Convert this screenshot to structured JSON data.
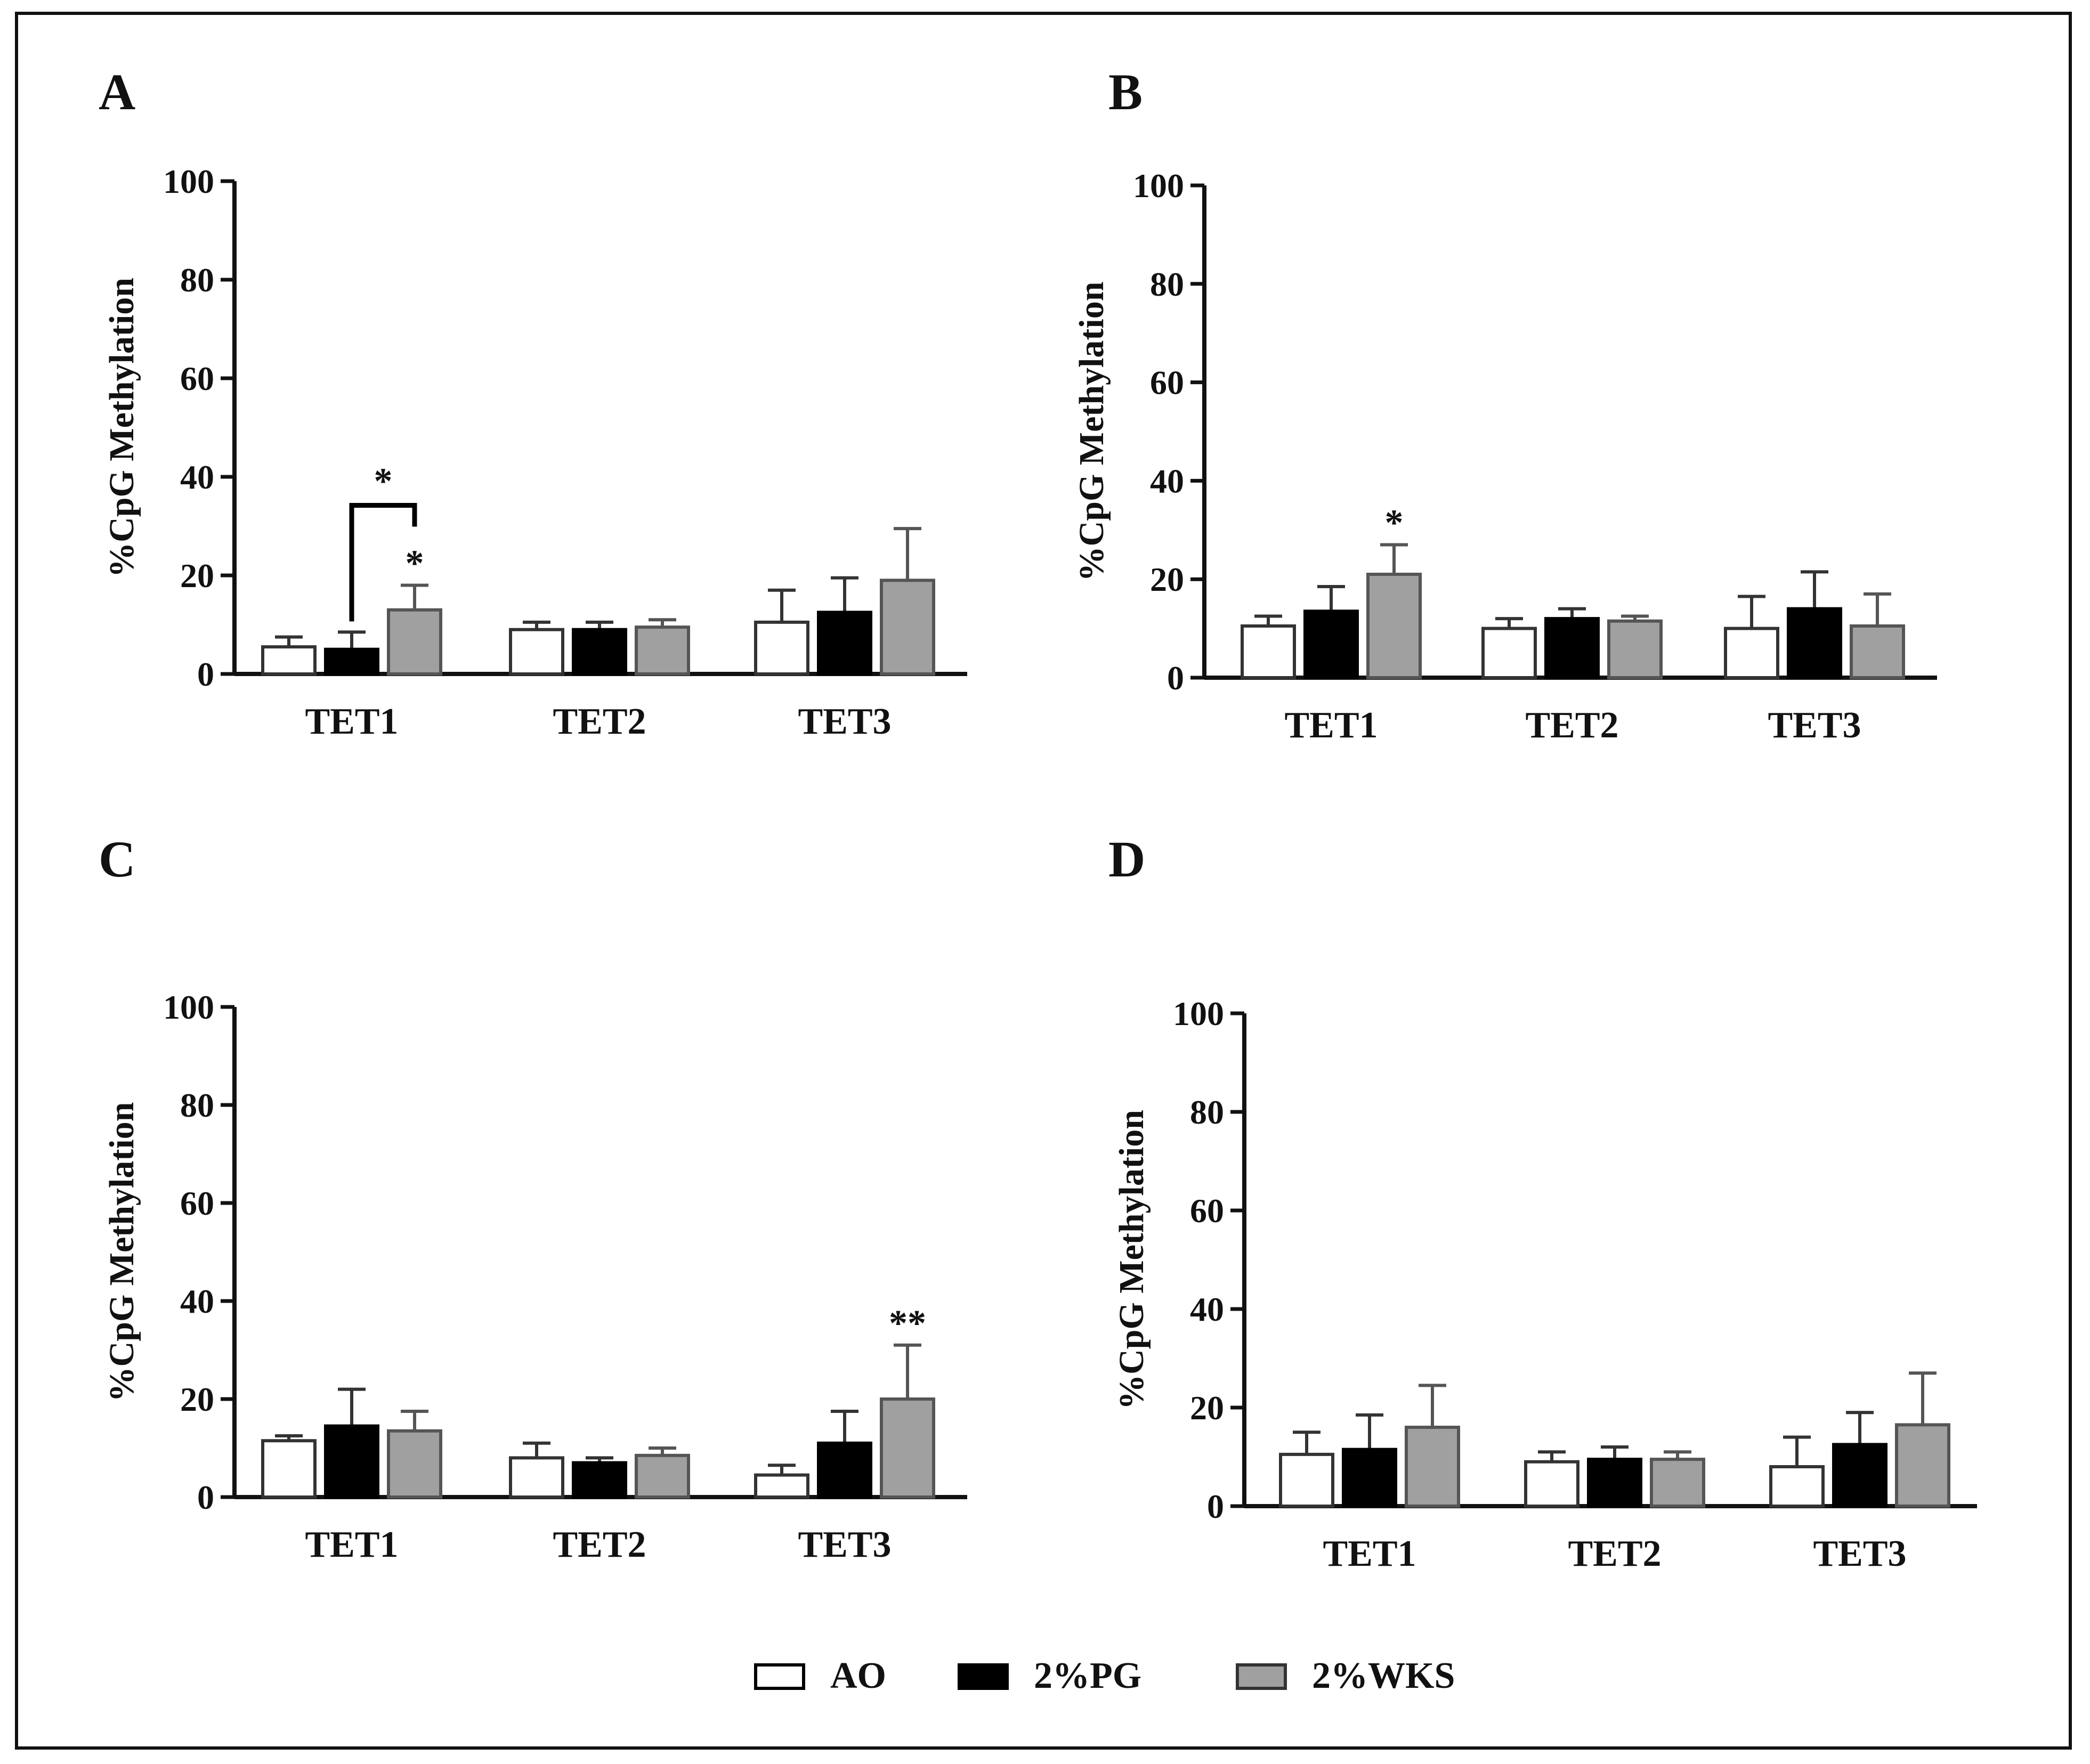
{
  "figure": {
    "legend": [
      {
        "label": "AO",
        "color": "#ffffff"
      },
      {
        "label": "2%PG",
        "color": "#000000"
      },
      {
        "label": "2%WKS",
        "color": "#a0a0a0"
      }
    ],
    "colors": {
      "axis": "#111111",
      "ao_fill": "#ffffff",
      "pg_fill": "#000000",
      "wks_fill": "#a0a0a0",
      "wks_stroke": "#555555"
    }
  },
  "chart_data": [
    {
      "panel": "A",
      "type": "bar",
      "ylabel": "%CpG Methylation",
      "ylim": [
        0,
        100
      ],
      "yticks": [
        0,
        20,
        40,
        60,
        80,
        100
      ],
      "categories": [
        "TET1",
        "TET2",
        "TET3"
      ],
      "series": [
        {
          "name": "AO",
          "values": [
            5.5,
            9,
            10.5
          ],
          "errors": [
            2,
            1.5,
            6.5
          ]
        },
        {
          "name": "2%PG",
          "values": [
            5,
            9,
            12.5
          ],
          "errors": [
            3.5,
            1.5,
            7
          ]
        },
        {
          "name": "2%WKS",
          "values": [
            13,
            9.5,
            19
          ],
          "errors": [
            5,
            1.5,
            10.5
          ]
        }
      ],
      "annotations": [
        {
          "text": "*",
          "category": "TET1",
          "series": "2%WKS",
          "kind": "above-bar"
        },
        {
          "text": "*",
          "category": "TET1",
          "from": "2%PG",
          "to": "2%WKS",
          "kind": "bracket"
        }
      ]
    },
    {
      "panel": "B",
      "type": "bar",
      "ylabel": "%CpG Methylation",
      "ylim": [
        0,
        100
      ],
      "yticks": [
        0,
        20,
        40,
        60,
        80,
        100
      ],
      "categories": [
        "TET1",
        "TET2",
        "TET3"
      ],
      "series": [
        {
          "name": "AO",
          "values": [
            10.5,
            10,
            10
          ],
          "errors": [
            2,
            2,
            6.5
          ]
        },
        {
          "name": "2%PG",
          "values": [
            13.5,
            12,
            14
          ],
          "errors": [
            5,
            2,
            7.5
          ]
        },
        {
          "name": "2%WKS",
          "values": [
            21,
            11.5,
            10.5
          ],
          "errors": [
            6,
            1,
            6.5
          ]
        }
      ],
      "annotations": [
        {
          "text": "*",
          "category": "TET1",
          "series": "2%WKS",
          "kind": "above-bar"
        }
      ]
    },
    {
      "panel": "C",
      "type": "bar",
      "ylabel": "%CpG Methylation",
      "ylim": [
        0,
        100
      ],
      "yticks": [
        0,
        20,
        40,
        60,
        80,
        100
      ],
      "categories": [
        "TET1",
        "TET2",
        "TET3"
      ],
      "series": [
        {
          "name": "AO",
          "values": [
            11.5,
            8,
            4.5
          ],
          "errors": [
            1,
            3,
            2
          ]
        },
        {
          "name": "2%PG",
          "values": [
            14.5,
            7,
            11
          ],
          "errors": [
            7.5,
            1,
            6.5
          ]
        },
        {
          "name": "2%WKS",
          "values": [
            13.5,
            8.5,
            20
          ],
          "errors": [
            4,
            1.5,
            11
          ]
        }
      ],
      "annotations": [
        {
          "text": "**",
          "category": "TET3",
          "series": "2%WKS",
          "kind": "above-bar"
        }
      ]
    },
    {
      "panel": "D",
      "type": "bar",
      "ylabel": "%CpG Methylation",
      "ylim": [
        0,
        100
      ],
      "yticks": [
        0,
        20,
        40,
        60,
        80,
        100
      ],
      "categories": [
        "TET1",
        "TET2",
        "TET3"
      ],
      "series": [
        {
          "name": "AO",
          "values": [
            10.5,
            9,
            8
          ],
          "errors": [
            4.5,
            2,
            6
          ]
        },
        {
          "name": "2%PG",
          "values": [
            11.5,
            9.5,
            12.5
          ],
          "errors": [
            7,
            2.5,
            6.5
          ]
        },
        {
          "name": "2%WKS",
          "values": [
            16,
            9.5,
            16.5
          ],
          "errors": [
            8.5,
            1.5,
            10.5
          ]
        }
      ],
      "annotations": []
    }
  ]
}
